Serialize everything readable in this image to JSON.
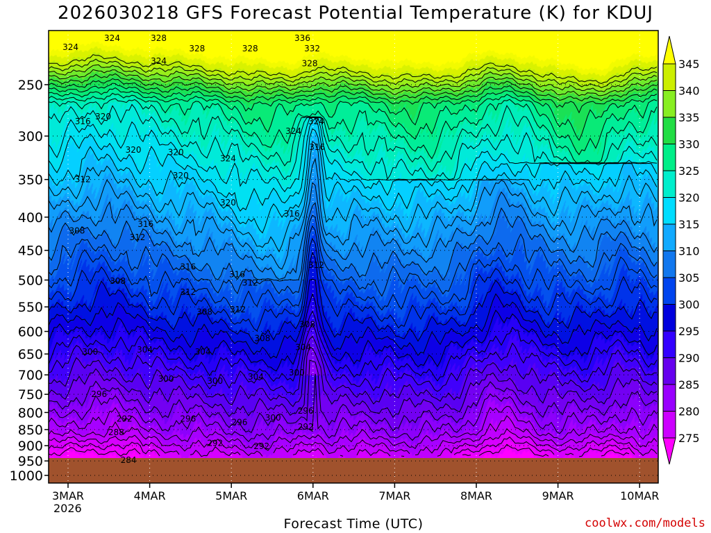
{
  "title": "2026030218 GFS Forecast Potential Temperature (K) for KDUJ",
  "xlabel": "Forecast Time (UTC)",
  "source": "coolwx.com/models",
  "contour": {
    "type": "heatmap",
    "variable": "Potential Temperature (K)",
    "y_ticks": [
      "250",
      "300",
      "350",
      "400",
      "450",
      "500",
      "550",
      "600",
      "650",
      "700",
      "750",
      "800",
      "850",
      "900",
      "950",
      "1000"
    ],
    "x_ticks": [
      "3MAR",
      "4MAR",
      "5MAR",
      "6MAR",
      "7MAR",
      "8MAR",
      "9MAR",
      "10MAR"
    ],
    "x_year": "2026",
    "colorbar_levels": [
      "275",
      "280",
      "285",
      "290",
      "295",
      "300",
      "305",
      "310",
      "315",
      "320",
      "325",
      "330",
      "335",
      "340",
      "345"
    ],
    "colorbar_colors": [
      "#ff00ff",
      "#cc00ff",
      "#9900ff",
      "#6600ee",
      "#3300ff",
      "#0000dd",
      "#0044ee",
      "#1177ee",
      "#11aaff",
      "#00ddff",
      "#00eecc",
      "#00ee88",
      "#22dd44",
      "#88ee22",
      "#ccee00",
      "#ffff00"
    ],
    "ground_color": "#a0522d",
    "contour_labels": [
      {
        "text": "324",
        "t": 0.03,
        "p": 219
      },
      {
        "text": "324",
        "t": 0.54,
        "p": 212
      },
      {
        "text": "328",
        "t": 1.11,
        "p": 212
      },
      {
        "text": "324",
        "t": 1.11,
        "p": 230
      },
      {
        "text": "328",
        "t": 1.58,
        "p": 220
      },
      {
        "text": "328",
        "t": 2.23,
        "p": 220
      },
      {
        "text": "336",
        "t": 2.87,
        "p": 212
      },
      {
        "text": "332",
        "t": 2.99,
        "p": 220
      },
      {
        "text": "328",
        "t": 2.96,
        "p": 232
      },
      {
        "text": "316",
        "t": 0.18,
        "p": 285
      },
      {
        "text": "320",
        "t": 0.43,
        "p": 280
      },
      {
        "text": "320",
        "t": 0.8,
        "p": 315
      },
      {
        "text": "320",
        "t": 1.32,
        "p": 318
      },
      {
        "text": "324",
        "t": 1.96,
        "p": 325
      },
      {
        "text": "324",
        "t": 2.76,
        "p": 295
      },
      {
        "text": "324",
        "t": 3.04,
        "p": 285
      },
      {
        "text": "316",
        "t": 3.05,
        "p": 312
      },
      {
        "text": "312",
        "t": 0.18,
        "p": 350
      },
      {
        "text": "320",
        "t": 1.38,
        "p": 345
      },
      {
        "text": "320",
        "t": 1.96,
        "p": 380
      },
      {
        "text": "316",
        "t": 2.74,
        "p": 395
      },
      {
        "text": "308",
        "t": 0.11,
        "p": 420
      },
      {
        "text": "316",
        "t": 0.95,
        "p": 410
      },
      {
        "text": "312",
        "t": 0.85,
        "p": 430
      },
      {
        "text": "316",
        "t": 1.47,
        "p": 477
      },
      {
        "text": "316",
        "t": 2.07,
        "p": 490
      },
      {
        "text": "312",
        "t": 3.04,
        "p": 474
      },
      {
        "text": "308",
        "t": 0.61,
        "p": 502
      },
      {
        "text": "312",
        "t": 1.47,
        "p": 522
      },
      {
        "text": "312",
        "t": 2.23,
        "p": 505
      },
      {
        "text": "308",
        "t": 1.67,
        "p": 560
      },
      {
        "text": "312",
        "t": 2.08,
        "p": 555
      },
      {
        "text": "308",
        "t": 2.93,
        "p": 585
      },
      {
        "text": "308",
        "t": 2.38,
        "p": 615
      },
      {
        "text": "304",
        "t": 0.94,
        "p": 640
      },
      {
        "text": "304",
        "t": 1.65,
        "p": 645
      },
      {
        "text": "304",
        "t": 2.88,
        "p": 635
      },
      {
        "text": "300",
        "t": 0.27,
        "p": 645
      },
      {
        "text": "300",
        "t": 1.2,
        "p": 710
      },
      {
        "text": "300",
        "t": 1.8,
        "p": 715
      },
      {
        "text": "304",
        "t": 2.3,
        "p": 705
      },
      {
        "text": "300",
        "t": 2.8,
        "p": 695
      },
      {
        "text": "296",
        "t": 0.38,
        "p": 750
      },
      {
        "text": "296",
        "t": 1.47,
        "p": 818
      },
      {
        "text": "296",
        "t": 2.1,
        "p": 828
      },
      {
        "text": "296",
        "t": 2.91,
        "p": 795
      },
      {
        "text": "292",
        "t": 0.69,
        "p": 818
      },
      {
        "text": "300",
        "t": 2.51,
        "p": 815
      },
      {
        "text": "288",
        "t": 0.59,
        "p": 858
      },
      {
        "text": "292",
        "t": 1.8,
        "p": 892
      },
      {
        "text": "292",
        "t": 2.37,
        "p": 902
      },
      {
        "text": "292",
        "t": 2.91,
        "p": 842
      },
      {
        "text": "284",
        "t": 0.74,
        "p": 947
      }
    ]
  }
}
